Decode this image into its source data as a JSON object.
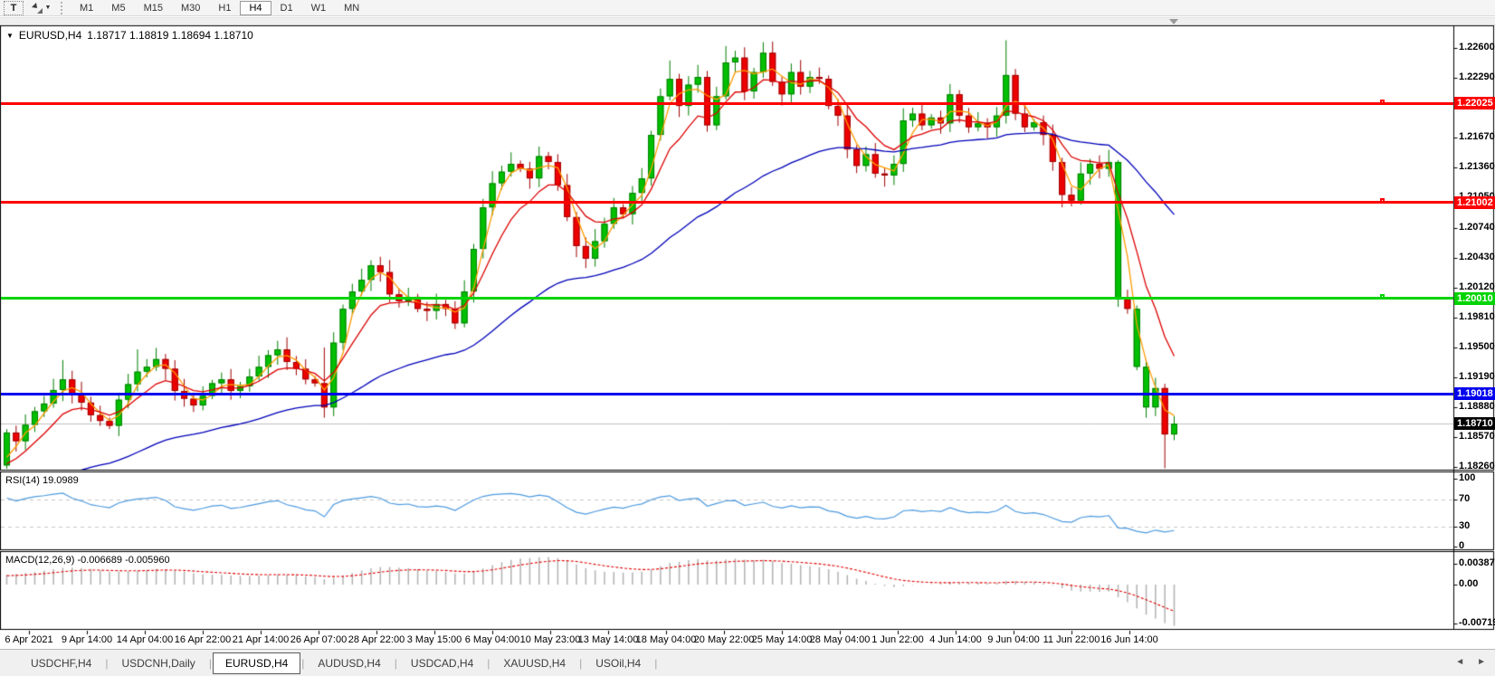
{
  "toolbar": {
    "text_tool_label": "T",
    "timeframes": [
      "M1",
      "M5",
      "M15",
      "M30",
      "H1",
      "H4",
      "D1",
      "W1",
      "MN"
    ],
    "active_timeframe": "H4"
  },
  "icons": {
    "arrows_tool": "arrows-tool-icon",
    "dropdown_caret": "▾",
    "collapse_caret": "▼",
    "tab_scroll_left": "◄",
    "tab_scroll_right": "►"
  },
  "chart": {
    "symbol_period": "EURUSD,H4",
    "ohlc": "1.18717 1.18819 1.18694 1.18710"
  },
  "price_axis": {
    "ticks": [
      "1.22600",
      "1.22290",
      "1.21980",
      "1.21670",
      "1.21360",
      "1.21050",
      "1.20740",
      "1.20430",
      "1.20120",
      "1.19810",
      "1.19500",
      "1.19190",
      "1.18880",
      "1.18570",
      "1.18260"
    ],
    "top_tick_value": 1.226,
    "tick_step": 0.0031
  },
  "hlines": [
    {
      "price": 1.22025,
      "label": "1.22025",
      "color": "#fe0000",
      "thickness": 3,
      "marker": true
    },
    {
      "price": 1.21002,
      "label": "1.21002",
      "color": "#fe0000",
      "thickness": 3,
      "marker": true
    },
    {
      "price": 1.2001,
      "label": "1.20010",
      "color": "#00d400",
      "thickness": 3,
      "marker": true
    },
    {
      "price": 1.19018,
      "label": "1.19018",
      "color": "#0000ee",
      "thickness": 3,
      "marker": false
    }
  ],
  "current_price": {
    "value": 1.1871,
    "label": "1.18710",
    "line_color": "#c0c0c0",
    "tag_bg": "#000000"
  },
  "chart_data": {
    "type": "candlestick",
    "symbol": "EURUSD",
    "timeframe": "H4",
    "up_fill": "#00c000",
    "up_edge": "#007e00",
    "down_fill": "#ee0000",
    "down_edge": "#9e0000",
    "closes": [
      1.1862,
      1.1853,
      1.187,
      1.1884,
      1.1892,
      1.1906,
      1.1917,
      1.1902,
      1.1893,
      1.188,
      1.1874,
      1.1869,
      1.1896,
      1.1912,
      1.1925,
      1.193,
      1.1938,
      1.1928,
      1.1905,
      1.1897,
      1.189,
      1.19,
      1.1913,
      1.1917,
      1.1905,
      1.191,
      1.192,
      1.193,
      1.1942,
      1.1948,
      1.1935,
      1.1928,
      1.1917,
      1.1913,
      1.1888,
      1.1955,
      1.199,
      1.2008,
      1.202,
      1.2035,
      1.2028,
      1.2005,
      1.1998,
      1.2002,
      1.199,
      1.1988,
      1.1995,
      1.199,
      1.1975,
      1.2008,
      1.2052,
      1.2095,
      1.212,
      1.2132,
      1.214,
      1.2135,
      1.2125,
      1.2148,
      1.2142,
      1.2118,
      1.2085,
      1.2055,
      1.2042,
      1.206,
      1.2078,
      1.2095,
      1.2088,
      1.211,
      1.2125,
      1.217,
      1.221,
      1.2228,
      1.22,
      1.2222,
      1.223,
      1.218,
      1.221,
      1.2245,
      1.225,
      1.2215,
      1.2235,
      1.2255,
      1.2225,
      1.2212,
      1.2235,
      1.222,
      1.223,
      1.2228,
      1.22,
      1.219,
      1.2155,
      1.2138,
      1.215,
      1.213,
      1.2128,
      1.214,
      1.2185,
      1.2192,
      1.218,
      1.2188,
      1.2182,
      1.2212,
      1.219,
      1.2178,
      1.2182,
      1.2178,
      1.219,
      1.2232,
      1.2192,
      1.2178,
      1.2183,
      1.217,
      1.2142,
      1.2108,
      1.2102,
      1.213,
      1.214,
      1.2135,
      1.2142,
      1.2,
      1.199,
      1.193,
      1.1888,
      1.1908,
      1.186,
      1.1871
    ],
    "wick_overrides": {
      "6": [
        1.1937,
        null
      ],
      "14": [
        1.1948,
        null
      ],
      "34": [
        1.195,
        null
      ],
      "54": [
        1.2152,
        null
      ],
      "57": [
        1.2158,
        null
      ],
      "71": [
        1.2247,
        null
      ],
      "77": [
        1.2262,
        null
      ],
      "81": [
        1.2266,
        null
      ],
      "107": [
        1.2268,
        null
      ],
      "113": [
        null,
        1.2095
      ],
      "119": [
        1.2144,
        1.1992
      ],
      "124": [
        null,
        1.1825
      ]
    },
    "green_override_indices": [
      119,
      121,
      122
    ],
    "pre_history": {
      "count": 60,
      "from": 1.169,
      "to": 1.183,
      "zigzag": 0.0009
    },
    "moving_averages": [
      {
        "name": "fast",
        "type": "sma",
        "period": 3,
        "color": "#ff9c00"
      },
      {
        "name": "mid",
        "type": "ema",
        "period": 8,
        "color": "#dd0000"
      },
      {
        "name": "slow",
        "type": "ema",
        "period": 40,
        "color": "#0000b8"
      }
    ],
    "rsi": {
      "label": "RSI(14) 19.0989",
      "period": 14,
      "last_value": 19.0989,
      "levels": [
        70,
        30
      ],
      "ticks": [
        "100",
        "70",
        "30",
        "0"
      ],
      "tick_values": [
        100,
        70,
        30,
        0
      ],
      "color": "#4e9be0",
      "level_color": "#c8c8c8"
    },
    "macd": {
      "label": "MACD(12,26,9) -0.006689 -0.005960",
      "fast": 12,
      "slow": 26,
      "signal": 9,
      "macd_value": -0.006689,
      "signal_value": -0.00596,
      "ticks": [
        "0.003873",
        "0.00",
        "-0.007192"
      ],
      "tick_values": [
        0.003873,
        0.0,
        -0.007192
      ],
      "axis_max": 0.003873,
      "axis_min": -0.007192,
      "hist_color": "#b2b2b2",
      "signal_color": "#e00000"
    }
  },
  "time_axis": {
    "labels": [
      "6 Apr 2021",
      "9 Apr 14:00",
      "14 Apr 04:00",
      "16 Apr 22:00",
      "21 Apr 14:00",
      "26 Apr 07:00",
      "28 Apr 22:00",
      "3 May 15:00",
      "6 May 04:00",
      "10 May 23:00",
      "13 May 14:00",
      "18 May 04:00",
      "20 May 22:00",
      "25 May 14:00",
      "28 May 04:00",
      "1 Jun 22:00",
      "4 Jun 14:00",
      "9 Jun 04:00",
      "11 Jun 22:00",
      "16 Jun 14:00"
    ]
  },
  "tabs": {
    "items": [
      "USDCHF,H4",
      "USDCNH,Daily",
      "EURUSD,H4",
      "AUDUSD,H4",
      "USDCAD,H4",
      "XAUUSD,H4",
      "USOil,H4"
    ],
    "active": "EURUSD,H4"
  }
}
